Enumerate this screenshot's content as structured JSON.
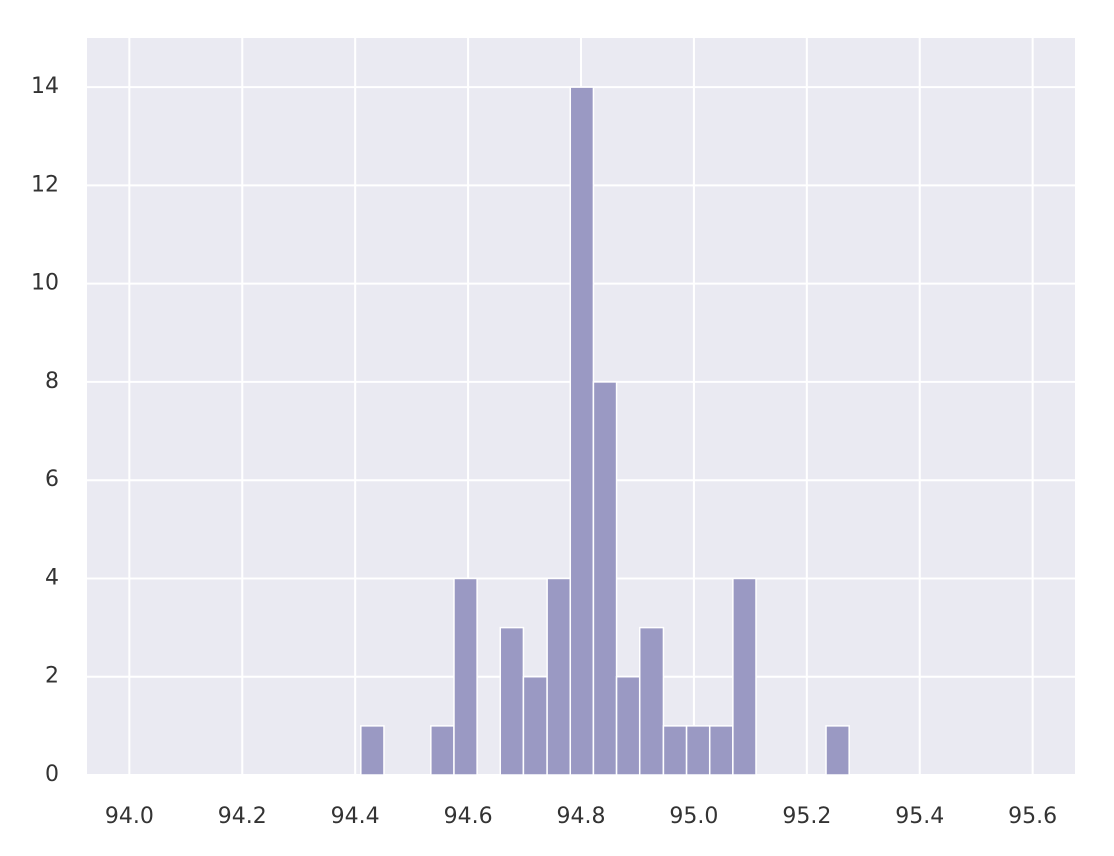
{
  "chart_data": {
    "type": "histogram",
    "bins": [
      94.41,
      94.451,
      94.492,
      94.534,
      94.575,
      94.616,
      94.657,
      94.698,
      94.74,
      94.781,
      94.822,
      94.863,
      94.904,
      94.946,
      94.987,
      95.028,
      95.069,
      95.11,
      95.152,
      95.193,
      95.234,
      95.275
    ],
    "values": [
      1,
      0,
      0,
      1,
      4,
      0,
      3,
      2,
      4,
      14,
      8,
      2,
      3,
      1,
      1,
      1,
      4,
      0,
      0,
      0,
      1
    ],
    "color": "#9a99c3",
    "xlim": [
      93.925,
      95.675
    ],
    "xticks": [
      {
        "value": 94.0,
        "label": "94.0"
      },
      94.2,
      94.4,
      94.6,
      94.8,
      {
        "value": 95.0,
        "label": "95.0"
      },
      95.2,
      95.4,
      95.6
    ],
    "ylim": [
      0,
      15
    ],
    "yticks": [
      0,
      2,
      4,
      6,
      8,
      10,
      12,
      14
    ],
    "grid": true
  }
}
